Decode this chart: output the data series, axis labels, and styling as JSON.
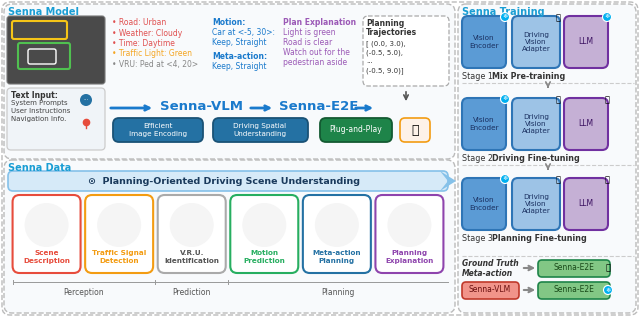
{
  "title_model": "Senna Model",
  "title_training": "Senna Training",
  "title_data": "Senna Data",
  "title_color": "#1a9ed4",
  "bullets": [
    {
      "text": "• Road: Urban",
      "color": "#e05050"
    },
    {
      "text": "• Weather: Cloudy",
      "color": "#e05050"
    },
    {
      "text": "• Time: Daytime",
      "color": "#e05050"
    },
    {
      "text": "• Traffic Light: Green",
      "color": "#f5a623"
    },
    {
      "text": "• VRU: Ped at <4, 20>",
      "color": "#888888"
    }
  ],
  "motion_label": "Motion:",
  "motion_lines": [
    "Car at <-5, 30>:",
    "Keep, Straight"
  ],
  "meta_label": "Meta-action:",
  "meta_lines": [
    "Keep, Straight"
  ],
  "motion_color": "#1a7acc",
  "plan_title": "Plan Explanation",
  "plan_lines": [
    "Light is green",
    "Road is clear",
    "Watch out for the",
    "pedestrian aside"
  ],
  "plan_color": "#9b59b6",
  "traj_lines": [
    "Planning",
    "Trajectories",
    "",
    "[ (0.0, 3.0),",
    "(-0.5, 5.0),",
    "...",
    "(-0.5, 9.0)]"
  ],
  "box1_text": "Efficient\nImage Encoding",
  "box1_fc": "#2471a3",
  "box2_text": "Driving Spatial\nUnderstanding",
  "box2_fc": "#2471a3",
  "box3_text": "Plug-and-Play",
  "box3_fc": "#1e8449",
  "vlm_text": "Senna-VLM",
  "e2e_text": "Senna-E2E",
  "arrow_color": "#1a7acc",
  "stage_labels": [
    "Stage 1",
    "Stage 2",
    "Stage 3"
  ],
  "stage_descs": [
    "Mix Pre-training",
    "Driving Fine-tuning",
    "Planning Fine-tuning"
  ],
  "ve_fc": "#5b9bd5",
  "ve_ec": "#2e75b6",
  "dva_fc": "#9dc3e6",
  "dva_ec": "#2e75b6",
  "llm_fc": "#c5b0d5",
  "llm_ec": "#7030a0",
  "freeze_color": "#00b0f0",
  "banner_text": "Planning-Oriented Driving Scene Understanding",
  "banner_fc": "#d6eaf8",
  "banner_ec": "#85c1e9",
  "task_boxes": [
    {
      "label": "Scene\nDescription",
      "ec": "#e74c3c",
      "tc": "#e74c3c"
    },
    {
      "label": "Traffic Signal\nDetection",
      "ec": "#f39c12",
      "tc": "#f39c12"
    },
    {
      "label": "V.R.U.\nIdentification",
      "ec": "#aaaaaa",
      "tc": "#555555"
    },
    {
      "label": "Motion\nPrediction",
      "ec": "#27ae60",
      "tc": "#27ae60"
    },
    {
      "label": "Meta-action\nPlanning",
      "ec": "#2471a3",
      "tc": "#2471a3"
    },
    {
      "label": "Planning\nExplanation",
      "ec": "#8e44ad",
      "tc": "#8e44ad"
    }
  ],
  "gt_text": "Ground Truth\nMeta-action",
  "vlm_fc": "#f1948a",
  "vlm_ec": "#c0392b",
  "e2e_fc": "#82c785",
  "e2e_ec": "#1e8449"
}
